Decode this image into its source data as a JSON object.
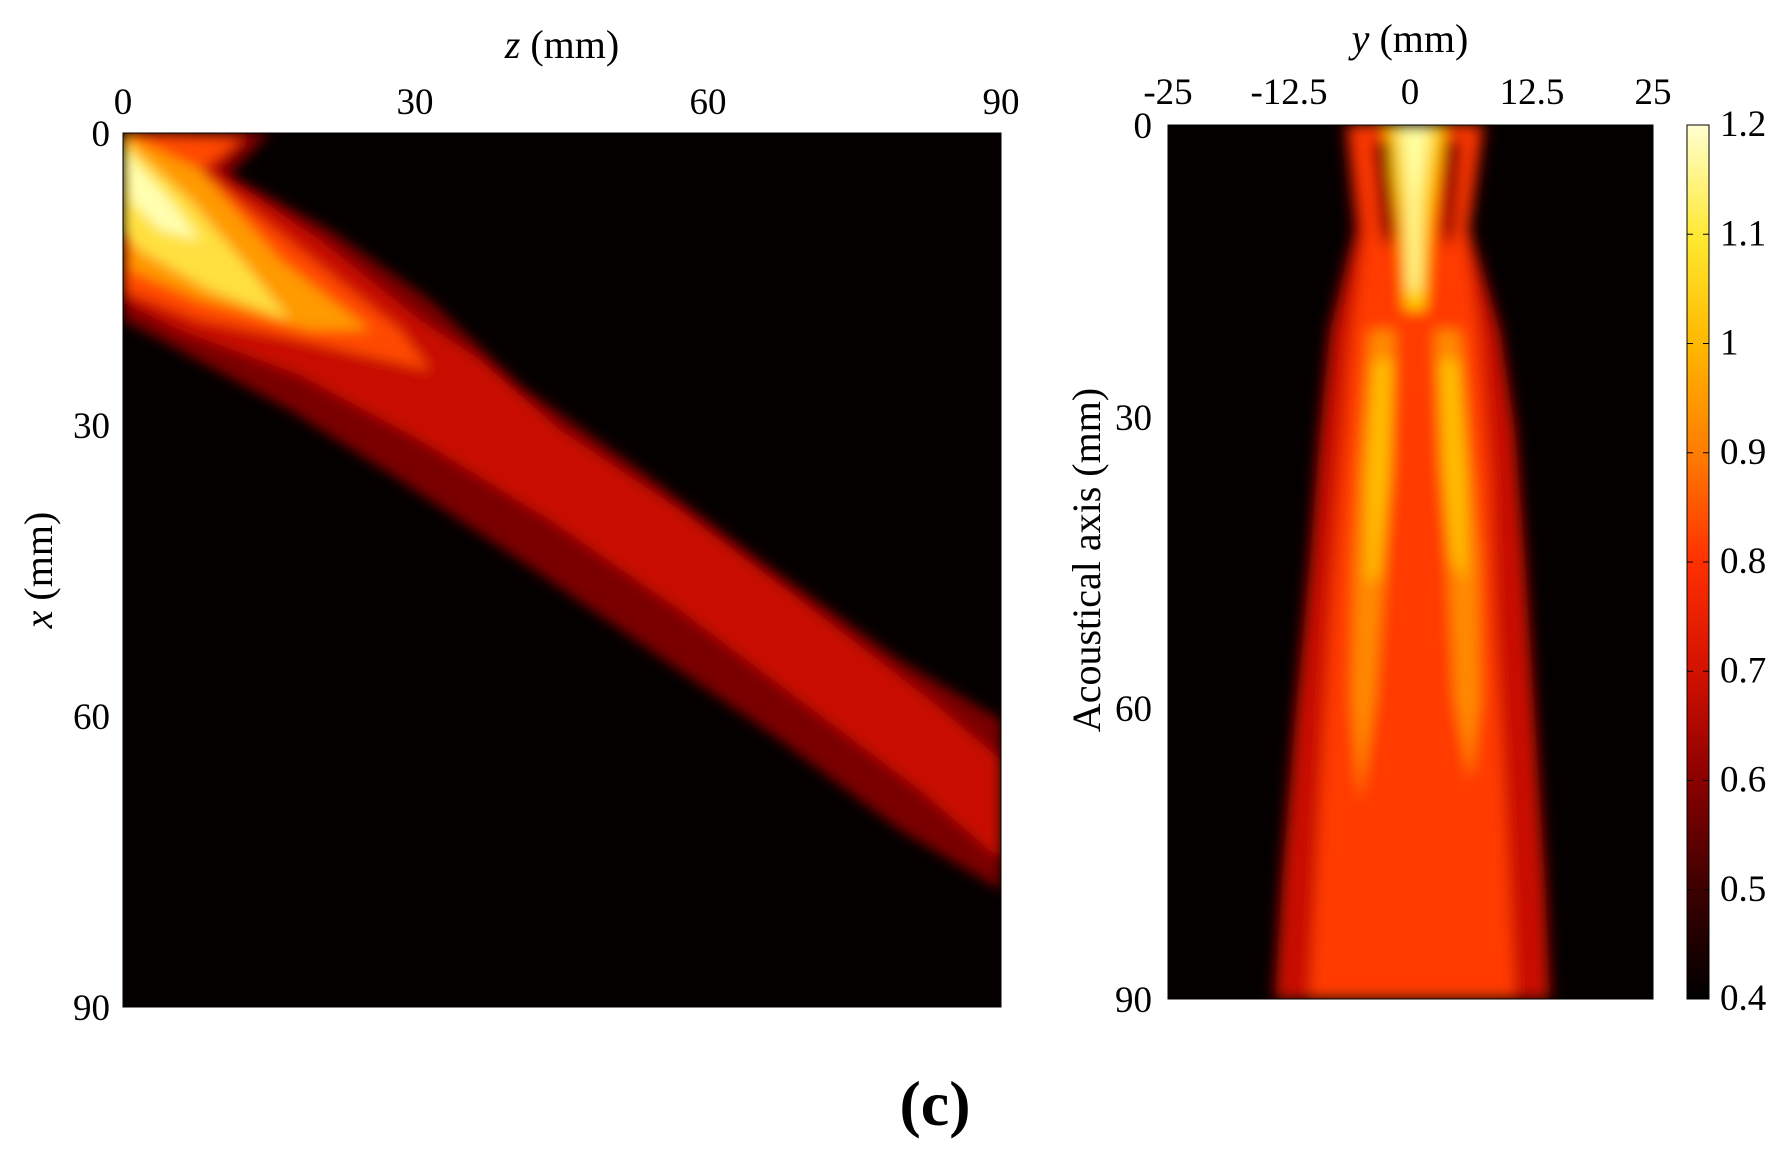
{
  "caption": "(c)",
  "colors": {
    "colormap": [
      "#000000",
      "#3a0000",
      "#8a0000",
      "#d01000",
      "#ff3000",
      "#ff7a00",
      "#ffb800",
      "#ffe830",
      "#ffffd0"
    ]
  },
  "chart_data": [
    {
      "type": "heatmap",
      "panel": "left",
      "x_axis_position": "top",
      "xlabel_italic": "z",
      "xlabel_rest": " (mm)",
      "ylabel_italic": "x",
      "ylabel_rest": " (mm)",
      "xticks": [
        "0",
        "30",
        "60",
        "90"
      ],
      "yticks": [
        "0",
        "30",
        "60",
        "90"
      ],
      "xlim": [
        0,
        90
      ],
      "ylim": [
        90,
        0
      ],
      "beam": {
        "description_points": [
          [
            0,
            0
          ],
          [
            10,
            12
          ],
          [
            30,
            27
          ],
          [
            50,
            42
          ],
          [
            70,
            56
          ],
          [
            90,
            73
          ]
        ],
        "peak_value": 1.2
      }
    },
    {
      "type": "heatmap",
      "panel": "right",
      "x_axis_position": "top",
      "xlabel_italic": "y",
      "xlabel_rest": " (mm)",
      "ylabel": "Acoustical axis (mm)",
      "xticks": [
        "-25",
        "-12.5",
        "0",
        "12.5",
        "25"
      ],
      "yticks": [
        "0",
        "30",
        "60",
        "90"
      ],
      "xlim": [
        -25,
        25
      ],
      "ylim": [
        90,
        0
      ],
      "colorbar": {
        "ticks": [
          "1.2",
          "1.1",
          "1",
          "0.9",
          "0.8",
          "0.7",
          "0.6",
          "0.5",
          "0.4"
        ],
        "range": [
          0.4,
          1.2
        ]
      }
    }
  ]
}
